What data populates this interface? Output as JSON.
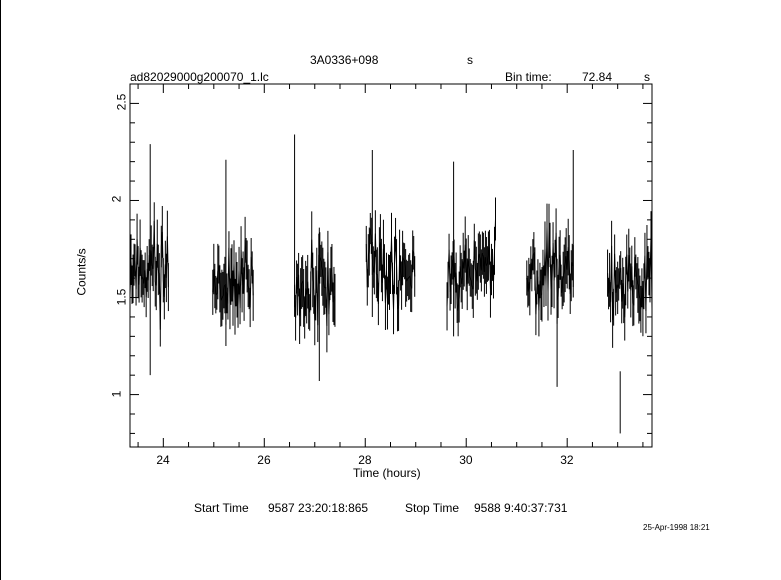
{
  "header": {
    "source": "3A0336+098",
    "source_unit": "s",
    "file": "ad82029000g200070_1.lc",
    "bin_time_label": "Bin time:",
    "bin_time_value": "72.84",
    "bin_time_unit": "s"
  },
  "footer": {
    "start_label": "Start Time",
    "start_value": "9587  23:20:18:865",
    "stop_label": "Stop Time",
    "stop_value": "9588   9:40:37:731",
    "date_stamp": "25-Apr-1998 18:21"
  },
  "chart_data": {
    "type": "line",
    "xlabel": "Time (hours)",
    "ylabel": "Counts/s",
    "xlim": [
      23.34,
      33.68
    ],
    "ylim": [
      0.73,
      2.6
    ],
    "x_ticks": [
      24,
      26,
      28,
      30,
      32
    ],
    "y_ticks": [
      1,
      1.5,
      2,
      2.5
    ],
    "x_tick_labels": [
      "24",
      "26",
      "28",
      "30",
      "32"
    ],
    "y_tick_labels": [
      "1",
      "1.5",
      "2",
      "2.5"
    ],
    "grid": false,
    "error_bars": true,
    "segments": [
      {
        "start": 23.34,
        "end": 24.1,
        "mean": 1.66,
        "spread": 0.17,
        "seed": 11
      },
      {
        "start": 24.98,
        "end": 25.78,
        "mean": 1.59,
        "spread": 0.14,
        "seed": 23
      },
      {
        "start": 26.6,
        "end": 27.4,
        "mean": 1.58,
        "spread": 0.15,
        "seed": 37
      },
      {
        "start": 28.02,
        "end": 28.98,
        "mean": 1.65,
        "spread": 0.14,
        "seed": 41
      },
      {
        "start": 29.62,
        "end": 30.58,
        "mean": 1.66,
        "spread": 0.14,
        "seed": 53
      },
      {
        "start": 31.2,
        "end": 32.12,
        "mean": 1.64,
        "spread": 0.15,
        "seed": 67
      },
      {
        "start": 32.8,
        "end": 33.68,
        "mean": 1.6,
        "spread": 0.15,
        "seed": 79
      }
    ],
    "spikes": [
      {
        "x": 23.74,
        "y_low": 1.1,
        "y_high": 2.29
      },
      {
        "x": 25.24,
        "y_low": 1.25,
        "y_high": 2.21
      },
      {
        "x": 26.6,
        "y_low": 1.45,
        "y_high": 2.34
      },
      {
        "x": 27.09,
        "y_low": 1.07,
        "y_high": 1.86
      },
      {
        "x": 28.14,
        "y_low": 1.4,
        "y_high": 2.26
      },
      {
        "x": 29.75,
        "y_low": 1.3,
        "y_high": 2.2
      },
      {
        "x": 31.8,
        "y_low": 1.04,
        "y_high": 1.7
      },
      {
        "x": 32.12,
        "y_low": 1.5,
        "y_high": 2.26
      },
      {
        "x": 33.05,
        "y_low": 0.8,
        "y_high": 1.12
      }
    ]
  }
}
